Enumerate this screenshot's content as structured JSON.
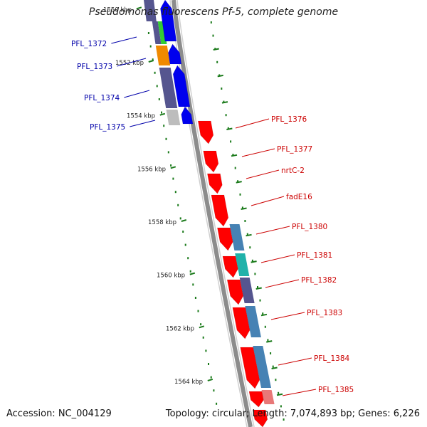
{
  "title": "Pseudomonas fluorescens Pf-5, complete genome",
  "footer": {
    "accession": "Accession: NC_004129",
    "summary": "Topology: circular; Length: 7,074,893 bp; Genes: 6,226"
  },
  "colors": {
    "backbone": "#8c8c8c",
    "reverse_labels": "#0000aa",
    "forward_labels": "#cc0000",
    "ticks": "#1a7a1a",
    "forward_genes": "#ff0000",
    "reverse_genes": "#0000ee",
    "orange": "#f08a00",
    "green": "#33cc33",
    "purple": "#55558f",
    "steel": "#4682b4",
    "teal": "#20b2aa",
    "grey": "#bdbdbd",
    "salmon": "#e87878"
  },
  "scale_labels": [
    {
      "kbp": 1550,
      "label": "1550 kbp"
    },
    {
      "kbp": 1552,
      "label": "1552 kbp"
    },
    {
      "kbp": 1554,
      "label": "1554 kbp"
    },
    {
      "kbp": 1556,
      "label": "1556 kbp"
    },
    {
      "kbp": 1558,
      "label": "1558 kbp"
    },
    {
      "kbp": 1560,
      "label": "1560 kbp"
    },
    {
      "kbp": 1562,
      "label": "1562 kbp"
    },
    {
      "kbp": 1564,
      "label": "1564 kbp"
    }
  ],
  "reverse_genes": [
    {
      "label": "PFL_1372"
    },
    {
      "label": "PFL_1373"
    },
    {
      "label": "PFL_1374"
    },
    {
      "label": "PFL_1375"
    }
  ],
  "forward_genes": [
    {
      "label": "PFL_1376"
    },
    {
      "label": "PFL_1377"
    },
    {
      "label": "nrtC-2"
    },
    {
      "label": "fadE16"
    },
    {
      "label": "PFL_1380"
    },
    {
      "label": "PFL_1381"
    },
    {
      "label": "PFL_1382"
    },
    {
      "label": "PFL_1383"
    },
    {
      "label": "PFL_1384"
    },
    {
      "label": "PFL_1385"
    }
  ]
}
